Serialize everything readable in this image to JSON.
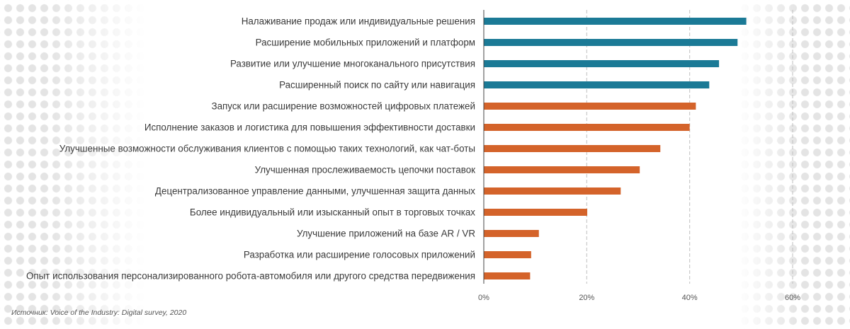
{
  "chart_data": {
    "type": "bar",
    "orientation": "horizontal",
    "title": "",
    "xlabel": "",
    "ylabel": "",
    "xlim": [
      0,
      60
    ],
    "x_ticks": [
      0,
      20,
      40,
      60
    ],
    "tick_format": "{v}%",
    "grid": true,
    "legend": "none",
    "categories": [
      "Налаживание продаж или индивидуальные решения",
      "Расширение мобильных приложений и платформ",
      "Развитие или улучшение многоканального присутствия",
      "Расширенный поиск по сайту или навигация",
      "Запуск или расширение возможностей цифровых платежей",
      "Исполнение заказов и логистика для повышения эффективности доставки",
      "Улучшенные возможности обслуживания клиентов с помощью таких технологий, как чат-боты",
      "Улучшенная прослеживаемость цепочки поставок",
      "Децентрализованное управление данными, улучшенная защита данных",
      "Более индивидуальный или изысканный опыт в торговых точках",
      "Улучшение приложений на базе AR / VR",
      "Разработка или расширение голосовых приложений",
      "Опыт использования персонализированного робота-автомобиля или другого средства передвижения"
    ],
    "values": [
      51,
      49.3,
      45.7,
      43.8,
      41.2,
      40,
      34.3,
      30.3,
      26.6,
      20.1,
      10.7,
      9.2,
      9
    ],
    "bar_colors": [
      "#1b7a96",
      "#1b7a96",
      "#1b7a96",
      "#1b7a96",
      "#d4632a",
      "#d4632a",
      "#d4632a",
      "#d4632a",
      "#d4632a",
      "#d4632a",
      "#d4632a",
      "#d4632a",
      "#d4632a"
    ]
  },
  "source": "Источник: Voice of the Industry: Digital survey, 2020",
  "colors": {
    "teal": "#1b7a96",
    "orange": "#d4632a",
    "gridline": "#bfbfbf",
    "axis": "#444444",
    "text": "#3a3a3a"
  }
}
